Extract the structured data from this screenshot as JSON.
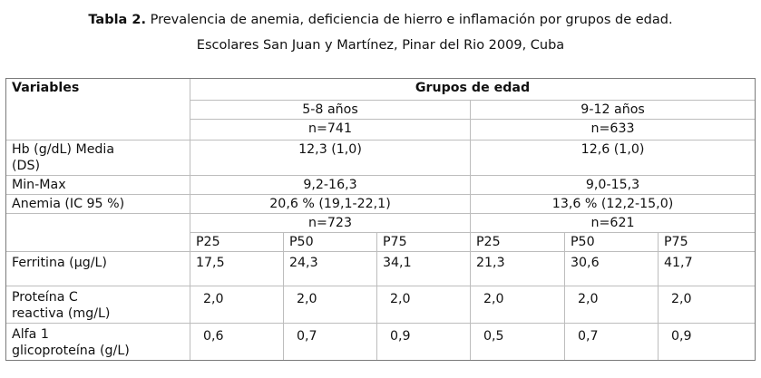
{
  "caption": {
    "label": "Tabla 2.",
    "title": "Prevalencia de anemia, deficiencia de hierro e inflamación por grupos de edad.",
    "subtitle": "Escolares San Juan y Martínez, Pinar del Rio 2009, Cuba"
  },
  "table": {
    "variables_header": "Variables",
    "groups_header": "Grupos de edad",
    "group1": {
      "label": "5-8 años",
      "n": "n=741",
      "n2": "n=723"
    },
    "group2": {
      "label": "9-12 años",
      "n": "n=633",
      "n2": "n=621"
    },
    "rows": {
      "hb": {
        "label_line1": "Hb (g/dL) Media",
        "label_line2": "(DS)",
        "g1": "12,3 (1,0)",
        "g2": "12,6 (1,0)"
      },
      "minmax": {
        "label": "Min-Max",
        "g1": "9,2-16,3",
        "g2": "9,0-15,3"
      },
      "anemia": {
        "label": "Anemia (IC 95 %)",
        "g1": "20,6 % (19,1-22,1)",
        "g2": "13,6 % (12,2-15,0)"
      }
    },
    "percentiles": [
      "P25",
      "P50",
      "P75",
      "P25",
      "P50",
      "P75"
    ],
    "ferritina": {
      "label": "Ferritina (µg/L)",
      "values": [
        "17,5",
        "24,3",
        "34,1",
        "21,3",
        "30,6",
        "41,7"
      ]
    },
    "proteina": {
      "label_line1": "Proteína C",
      "label_line2": "reactiva (mg/L)",
      "values": [
        "2,0",
        "2,0",
        "2,0",
        "2,0",
        "2,0",
        "2,0"
      ]
    },
    "alfa": {
      "label_line1": "Alfa 1",
      "label_line2": "glicoproteína (g/L)",
      "values": [
        "0,6",
        "0,7",
        "0,9",
        "0,5",
        "0,7",
        "0,9"
      ]
    }
  }
}
